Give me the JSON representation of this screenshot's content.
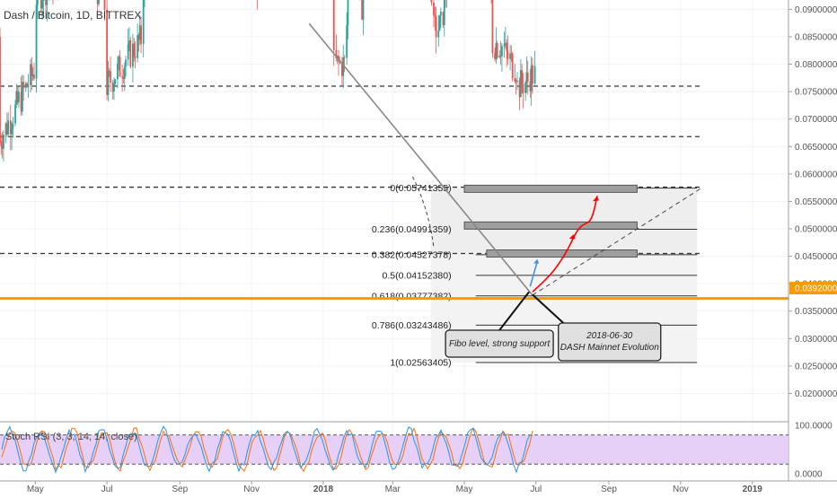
{
  "chart_data": {
    "type": "candlestick",
    "title": "Dash / Bitcoin, 1D, BITTREX",
    "y_axis": {
      "ticks": [
        "0.09000000",
        "0.08500000",
        "0.08000000",
        "0.07500000",
        "0.07000000",
        "0.06500000",
        "0.06000000",
        "0.05500000",
        "0.05000000",
        "0.04500000",
        "0.04000000",
        "0.03500000",
        "0.03000000",
        "0.02500000",
        "0.02000000"
      ],
      "range": [
        0.0155,
        0.0917
      ],
      "current_price_label": "0.03920001"
    },
    "x_axis": {
      "labels": [
        "May",
        "Jul",
        "Sep",
        "Nov",
        "2018",
        "Mar",
        "May",
        "Jul",
        "Sep",
        "Nov",
        "2019"
      ],
      "start": "2017-04-01",
      "end": "2019-01-31"
    },
    "colors": {
      "up": "#26a69a",
      "down": "#ef5350",
      "support_line": "#ff9800",
      "current_price_bg": "#ff9800",
      "rsi_band": "#e3c8f7",
      "rsi_k": "#2196f3",
      "rsi_d": "#ff6d00",
      "fib_box": "#f3f3f3",
      "arrow_red": "#ff0000",
      "arrow_blue": "#4a90d9",
      "annotation_fill": "#e0e0e0"
    },
    "candles_closes": [
      [
        0.091,
        0.033
      ],
      [
        0.076,
        0.046
      ],
      [
        0.065,
        0.052
      ],
      [
        0.056,
        0.038
      ],
      [
        0.047,
        0.047
      ],
      [
        0.046,
        0.07
      ],
      [
        0.074,
        0.058
      ],
      [
        0.076,
        0.085
      ],
      [
        0.068,
        0.065
      ],
      [
        0.058,
        0.052
      ],
      [
        0.052,
        0.06
      ],
      [
        0.066,
        0.045
      ],
      [
        0.044,
        0.08
      ],
      [
        0.088,
        0.092
      ],
      [
        0.08,
        0.072
      ],
      [
        0.065,
        0.055
      ],
      [
        0.046,
        0.04
      ],
      [
        0.036,
        0.04
      ],
      [
        0.056,
        0.072
      ],
      [
        0.066,
        0.044
      ],
      [
        0.038,
        0.057
      ],
      [
        0.065,
        0.087
      ],
      [
        0.08,
        0.072
      ],
      [
        0.072,
        0.07
      ],
      [
        0.066,
        0.067
      ],
      [
        0.064,
        0.058
      ],
      [
        0.06,
        0.052
      ],
      [
        0.05,
        0.05
      ],
      [
        0.046,
        0.043
      ],
      [
        0.042,
        0.044
      ],
      [
        0.051,
        0.056
      ],
      [
        0.055,
        0.052
      ],
      [
        0.053,
        0.057
      ],
      [
        0.056,
        0.053
      ],
      [
        0.053,
        0.049
      ],
      [
        0.047,
        0.042
      ],
      [
        0.041,
        0.041
      ],
      [
        0.04,
        0.038
      ],
      [
        0.038,
        0.039
      ]
    ],
    "candles_weeks": [
      "2017-04-01",
      "2017-05-01",
      "2017-06-01",
      "2017-07-01",
      "2017-08-01",
      "2017-08-20",
      "2017-09-01",
      "2017-09-10",
      "2017-09-25",
      "2017-10-10",
      "2017-10-25",
      "2017-11-05",
      "2017-11-20",
      "2017-12-01",
      "2017-12-15",
      "2017-12-28",
      "2018-01-10",
      "2018-01-20",
      "2018-01-25",
      "2018-02-01",
      "2018-02-10",
      "2018-02-15",
      "2018-02-20",
      "2018-02-28",
      "2018-03-05",
      "2018-03-12",
      "2018-03-20",
      "2018-03-28",
      "2018-04-05",
      "2018-04-12",
      "2018-04-20",
      "2018-04-28",
      "2018-05-01",
      "2018-05-10",
      "2018-05-18",
      "2018-05-25",
      "2018-06-05",
      "2018-06-15",
      "2018-06-25"
    ],
    "horizontal_levels": [
      0.076,
      0.0668,
      0.0576,
      0.0455
    ],
    "fibonacci": {
      "start_date": "2018-04-01",
      "end_date": "2018-11-15",
      "levels": [
        {
          "label": "0(0.05741355)",
          "price": 0.05741355
        },
        {
          "label": "0.236(0.04991359)",
          "price": 0.04991359
        },
        {
          "label": "0.382(0.04527378)",
          "price": 0.04527378
        },
        {
          "label": "0.5(0.04152380)",
          "price": 0.0415238
        },
        {
          "label": "0.618(0.03777382)",
          "price": 0.03777382
        },
        {
          "label": "0.786(0.03243486)",
          "price": 0.03243486
        },
        {
          "label": "1(0.02563405)",
          "price": 0.02563405
        }
      ]
    },
    "support_price": 0.0373,
    "trendline": {
      "from": [
        "2017-12-20",
        0.0874
      ],
      "to": [
        "2018-06-28",
        0.0379
      ]
    },
    "rising_line": {
      "from": [
        "2018-06-28",
        0.0379
      ],
      "to": [
        "2018-11-20",
        0.0576
      ]
    },
    "zones": [
      {
        "from": "2018-05-01",
        "to": "2018-09-25",
        "price": 0.0573
      },
      {
        "from": "2018-05-01",
        "to": "2018-09-25",
        "price": 0.0506
      },
      {
        "from": "2018-05-20",
        "to": "2018-09-25",
        "price": 0.0455
      }
    ],
    "annotations": [
      {
        "text": "Fibo level, strong support",
        "pointer_date": "2018-06-25",
        "pointer_price": 0.0385
      },
      {
        "text_line1": "2018-06-30",
        "text_line2": "DASH Mainnet Evolution",
        "pointer_date": "2018-06-28",
        "pointer_price": 0.038
      }
    ],
    "stoch_rsi": {
      "label": "Stoch RSI (3, 3, 14, 14, close)",
      "upper": 80,
      "lower": 20,
      "ticks": [
        "100.0000",
        "0.0000"
      ]
    }
  }
}
